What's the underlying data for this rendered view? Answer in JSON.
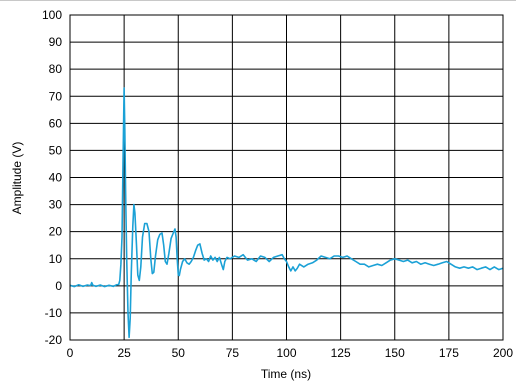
{
  "chart_data": {
    "type": "line",
    "title": "",
    "xlabel": "Time (ns)",
    "ylabel": "Amplitude (V)",
    "xlim": [
      0,
      200
    ],
    "ylim": [
      -20,
      100
    ],
    "xticks": [
      0,
      25,
      50,
      75,
      100,
      125,
      150,
      175,
      200
    ],
    "yticks": [
      -20,
      -10,
      0,
      10,
      20,
      30,
      40,
      50,
      60,
      70,
      80,
      90,
      100
    ],
    "xtick_labels": [
      "0",
      "25",
      "50",
      "75",
      "100",
      "125",
      "150",
      "175",
      "200"
    ],
    "ytick_labels": [
      "-20",
      "-10",
      "0",
      "10",
      "20",
      "30",
      "40",
      "50",
      "60",
      "70",
      "80",
      "90",
      "100"
    ],
    "grid": true,
    "legend": "none",
    "series_color": "#1ba1d6",
    "series": [
      {
        "values": [
          [
            0,
            0.2
          ],
          [
            2,
            -0.3
          ],
          [
            4,
            0.4
          ],
          [
            6,
            -0.2
          ],
          [
            8,
            0.3
          ],
          [
            9.5,
            0.1
          ],
          [
            10,
            1.2
          ],
          [
            10.6,
            0.2
          ],
          [
            12,
            -0.2
          ],
          [
            14,
            0.3
          ],
          [
            16,
            -0.3
          ],
          [
            18,
            0.2
          ],
          [
            20,
            -0.2
          ],
          [
            21.5,
            0.4
          ],
          [
            22.5,
            0.5
          ],
          [
            23,
            2
          ],
          [
            23.5,
            8
          ],
          [
            24,
            18
          ],
          [
            24.5,
            45
          ],
          [
            25,
            73
          ],
          [
            25.3,
            58
          ],
          [
            25.7,
            35
          ],
          [
            26.2,
            10
          ],
          [
            26.8,
            -10
          ],
          [
            27.3,
            -19
          ],
          [
            27.8,
            -12
          ],
          [
            28.3,
            5
          ],
          [
            29,
            22
          ],
          [
            29.5,
            30
          ],
          [
            30,
            27
          ],
          [
            30.7,
            15
          ],
          [
            31.3,
            4
          ],
          [
            32,
            2
          ],
          [
            32.7,
            7
          ],
          [
            33.5,
            18
          ],
          [
            34.5,
            23
          ],
          [
            35.5,
            23
          ],
          [
            36.5,
            20
          ],
          [
            37.3,
            10
          ],
          [
            38,
            4.5
          ],
          [
            38.7,
            5
          ],
          [
            39.5,
            11
          ],
          [
            40.5,
            17
          ],
          [
            41.5,
            19
          ],
          [
            42.5,
            19.5
          ],
          [
            43.3,
            15
          ],
          [
            44,
            9
          ],
          [
            44.8,
            8
          ],
          [
            45.7,
            12
          ],
          [
            46.7,
            17.5
          ],
          [
            47.7,
            19.5
          ],
          [
            48.5,
            21
          ],
          [
            49,
            18
          ],
          [
            49.5,
            10
          ],
          [
            50,
            4
          ],
          [
            50.5,
            3.8
          ],
          [
            51,
            6
          ],
          [
            52,
            9
          ],
          [
            53,
            10
          ],
          [
            54,
            8.5
          ],
          [
            55,
            8
          ],
          [
            56,
            9
          ],
          [
            57,
            10.5
          ],
          [
            58,
            13
          ],
          [
            59,
            15
          ],
          [
            60,
            15.5
          ],
          [
            61,
            12
          ],
          [
            62,
            9.5
          ],
          [
            63,
            10
          ],
          [
            64,
            9
          ],
          [
            65,
            11
          ],
          [
            66,
            9.5
          ],
          [
            67,
            10.5
          ],
          [
            68,
            9
          ],
          [
            69,
            10.5
          ],
          [
            70,
            8
          ],
          [
            70.8,
            6
          ],
          [
            71.5,
            9
          ],
          [
            72.5,
            10.5
          ],
          [
            74,
            10
          ],
          [
            76,
            11
          ],
          [
            78,
            10.5
          ],
          [
            80,
            11.5
          ],
          [
            82,
            9.5
          ],
          [
            84,
            10
          ],
          [
            86,
            9
          ],
          [
            88,
            11
          ],
          [
            90,
            10.5
          ],
          [
            92,
            9
          ],
          [
            94,
            10.5
          ],
          [
            96,
            11
          ],
          [
            98,
            11.5
          ],
          [
            99,
            10
          ],
          [
            100,
            9
          ],
          [
            101,
            7
          ],
          [
            102,
            5.5
          ],
          [
            103,
            7
          ],
          [
            104,
            5.5
          ],
          [
            105,
            6.5
          ],
          [
            106,
            8
          ],
          [
            108,
            7
          ],
          [
            110,
            8
          ],
          [
            112,
            8.5
          ],
          [
            114,
            9.5
          ],
          [
            116,
            11
          ],
          [
            118,
            10.5
          ],
          [
            120,
            10
          ],
          [
            122,
            11
          ],
          [
            124,
            11
          ],
          [
            126,
            10.5
          ],
          [
            128,
            11
          ],
          [
            130,
            10
          ],
          [
            132,
            9
          ],
          [
            134,
            8
          ],
          [
            136,
            8
          ],
          [
            138,
            7
          ],
          [
            140,
            7.5
          ],
          [
            142,
            8
          ],
          [
            144,
            7.5
          ],
          [
            146,
            8.5
          ],
          [
            148,
            9.5
          ],
          [
            150,
            10
          ],
          [
            152,
            9.5
          ],
          [
            154,
            9
          ],
          [
            156,
            9.5
          ],
          [
            158,
            8.5
          ],
          [
            160,
            9
          ],
          [
            162,
            8
          ],
          [
            164,
            8.5
          ],
          [
            166,
            8
          ],
          [
            168,
            7.5
          ],
          [
            170,
            8
          ],
          [
            172,
            8.5
          ],
          [
            174,
            9
          ],
          [
            176,
            8
          ],
          [
            178,
            7
          ],
          [
            180,
            6.5
          ],
          [
            182,
            7
          ],
          [
            184,
            6.5
          ],
          [
            186,
            7
          ],
          [
            188,
            6
          ],
          [
            190,
            6.5
          ],
          [
            192,
            7
          ],
          [
            194,
            6
          ],
          [
            196,
            7
          ],
          [
            198,
            6
          ],
          [
            200,
            6.5
          ]
        ]
      }
    ]
  }
}
